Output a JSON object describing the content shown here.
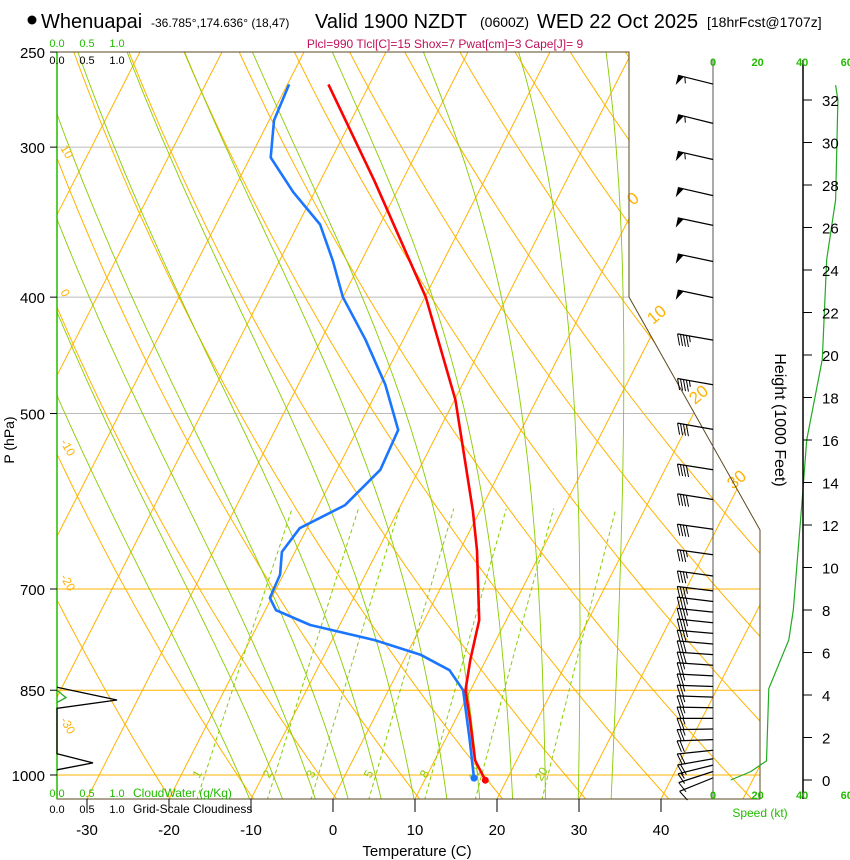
{
  "header": {
    "station": "Whenuapai",
    "coords": "-36.785°,174.636° (18,47)",
    "valid": "Valid 1900 NZDT",
    "utc": "(0600Z)",
    "date": "WED 22 Oct 2025",
    "forecast": "[18hrFcst@1707z]",
    "indices": "Plcl=990 Tlcl[C]=15 Shox=7 Pwat[cm]=3 Cape[J]= 9"
  },
  "chart_data": {
    "type": "line",
    "subtype": "skew-T log-P sounding",
    "xlabel": "Temperature (C)",
    "ylabel": "P (hPa)",
    "right_ylabel": "Height (1000 Feet)",
    "x_ticks": [
      -30,
      -20,
      -10,
      0,
      10,
      20,
      30,
      40
    ],
    "pressure_ticks": [
      250,
      300,
      400,
      500,
      700,
      850,
      1000
    ],
    "height_ticks": [
      0,
      2,
      4,
      6,
      8,
      10,
      12,
      14,
      16,
      18,
      20,
      22,
      24,
      26,
      28,
      30,
      32
    ],
    "speed_ticks": [
      0,
      20,
      40,
      60
    ],
    "speed_label": "Speed (kt)",
    "cloud_scale_ticks": [
      "0.0",
      "0.5",
      "1.0"
    ],
    "cloudwater_label": "CloudWater (g/Kg)",
    "cloudiness_label": "Grid-Scale Cloudiness",
    "mixing_ratio_labels": [
      1,
      2,
      3,
      5,
      8,
      12,
      20
    ],
    "left_line_labels": [
      "10",
      "0",
      "-10",
      "-20",
      "-30"
    ],
    "right_line_labels": [
      "0",
      "10",
      "20",
      "30"
    ],
    "colors": {
      "temperature": "#ff0000",
      "dewpoint": "#1a75ff",
      "isotherm": "#ffb300",
      "moist": "#88cc00",
      "speed": "#22aa22",
      "green_text": "#22bb00",
      "indices": "#c0105a"
    },
    "temperature": {
      "name": "Temperature",
      "points": [
        [
          266,
          -45.0
        ],
        [
          320,
          -33.4
        ],
        [
          400,
          -19.9
        ],
        [
          487,
          -9.9
        ],
        [
          602,
          -0.9
        ],
        [
          650,
          2.1
        ],
        [
          743,
          6.7
        ],
        [
          802,
          8.1
        ],
        [
          850,
          9.4
        ],
        [
          900,
          11.8
        ],
        [
          972,
          14.9
        ],
        [
          1010,
          17.4
        ]
      ]
    },
    "dewpoint": {
      "name": "Dewpoint",
      "points": [
        [
          266,
          -49.8
        ],
        [
          285,
          -49.4
        ],
        [
          306,
          -47.5
        ],
        [
          327,
          -42.6
        ],
        [
          348,
          -37.3
        ],
        [
          373,
          -33.5
        ],
        [
          400,
          -30.0
        ],
        [
          434,
          -24.6
        ],
        [
          473,
          -19.4
        ],
        [
          516,
          -15.0
        ],
        [
          557,
          -14.7
        ],
        [
          596,
          -16.8
        ],
        [
          623,
          -20.9
        ],
        [
          652,
          -21.6
        ],
        [
          681,
          -20.4
        ],
        [
          712,
          -20.2
        ],
        [
          729,
          -18.7
        ],
        [
          750,
          -13.6
        ],
        [
          772,
          -4.8
        ],
        [
          794,
          1.7
        ],
        [
          818,
          6.2
        ],
        [
          850,
          9.1
        ],
        [
          935,
          13.0
        ],
        [
          1006,
          15.9
        ]
      ]
    },
    "cloudiness": {
      "name": "Grid-Scale Cloudiness",
      "points": [
        [
          845,
          0
        ],
        [
          866,
          1.0
        ],
        [
          880,
          0
        ],
        [
          960,
          0
        ],
        [
          977,
          0.6
        ],
        [
          990,
          0
        ]
      ]
    },
    "cloudwater": {
      "name": "CloudWater",
      "points": [
        [
          850,
          0
        ],
        [
          862,
          0.15
        ],
        [
          870,
          0
        ]
      ]
    },
    "wind_speed_profile": {
      "name": "Speed",
      "points": [
        [
          0,
          8
        ],
        [
          0.4,
          17
        ],
        [
          0.9,
          24
        ],
        [
          4.3,
          25
        ],
        [
          6.6,
          34
        ],
        [
          8.0,
          36
        ],
        [
          13.2,
          40
        ],
        [
          16.0,
          42
        ],
        [
          19.8,
          49
        ],
        [
          24.5,
          51
        ],
        [
          27.3,
          55
        ],
        [
          32,
          56
        ],
        [
          32.7,
          55
        ]
      ]
    },
    "wind_barbs": [
      [
        32.75,
        256,
        55
      ],
      [
        30.9,
        256,
        55
      ],
      [
        29.2,
        257,
        55
      ],
      [
        27.5,
        257,
        52
      ],
      [
        26.1,
        258,
        50
      ],
      [
        24.4,
        258,
        52
      ],
      [
        22.7,
        258,
        50
      ],
      [
        20.7,
        260,
        45
      ],
      [
        18.6,
        260,
        43
      ],
      [
        16.5,
        260,
        42
      ],
      [
        14.6,
        261,
        40
      ],
      [
        13.2,
        261,
        40
      ],
      [
        11.8,
        262,
        38
      ],
      [
        10.6,
        262,
        37
      ],
      [
        9.6,
        262,
        37
      ],
      [
        8.9,
        263,
        36
      ],
      [
        8.4,
        263,
        35
      ],
      [
        7.9,
        264,
        35
      ],
      [
        7.4,
        264,
        34
      ],
      [
        6.9,
        265,
        33
      ],
      [
        6.4,
        265,
        31
      ],
      [
        5.9,
        266,
        29
      ],
      [
        5.4,
        266,
        27
      ],
      [
        4.9,
        267,
        26
      ],
      [
        4.4,
        268,
        25
      ],
      [
        3.9,
        268,
        25
      ],
      [
        3.4,
        269,
        25
      ],
      [
        2.9,
        270,
        25
      ],
      [
        2.4,
        271,
        24
      ],
      [
        1.9,
        272,
        22
      ],
      [
        1.4,
        276,
        20
      ],
      [
        1.0,
        280,
        18
      ],
      [
        0.7,
        284,
        15
      ],
      [
        0.4,
        288,
        12
      ],
      [
        0.1,
        292,
        8
      ]
    ]
  }
}
